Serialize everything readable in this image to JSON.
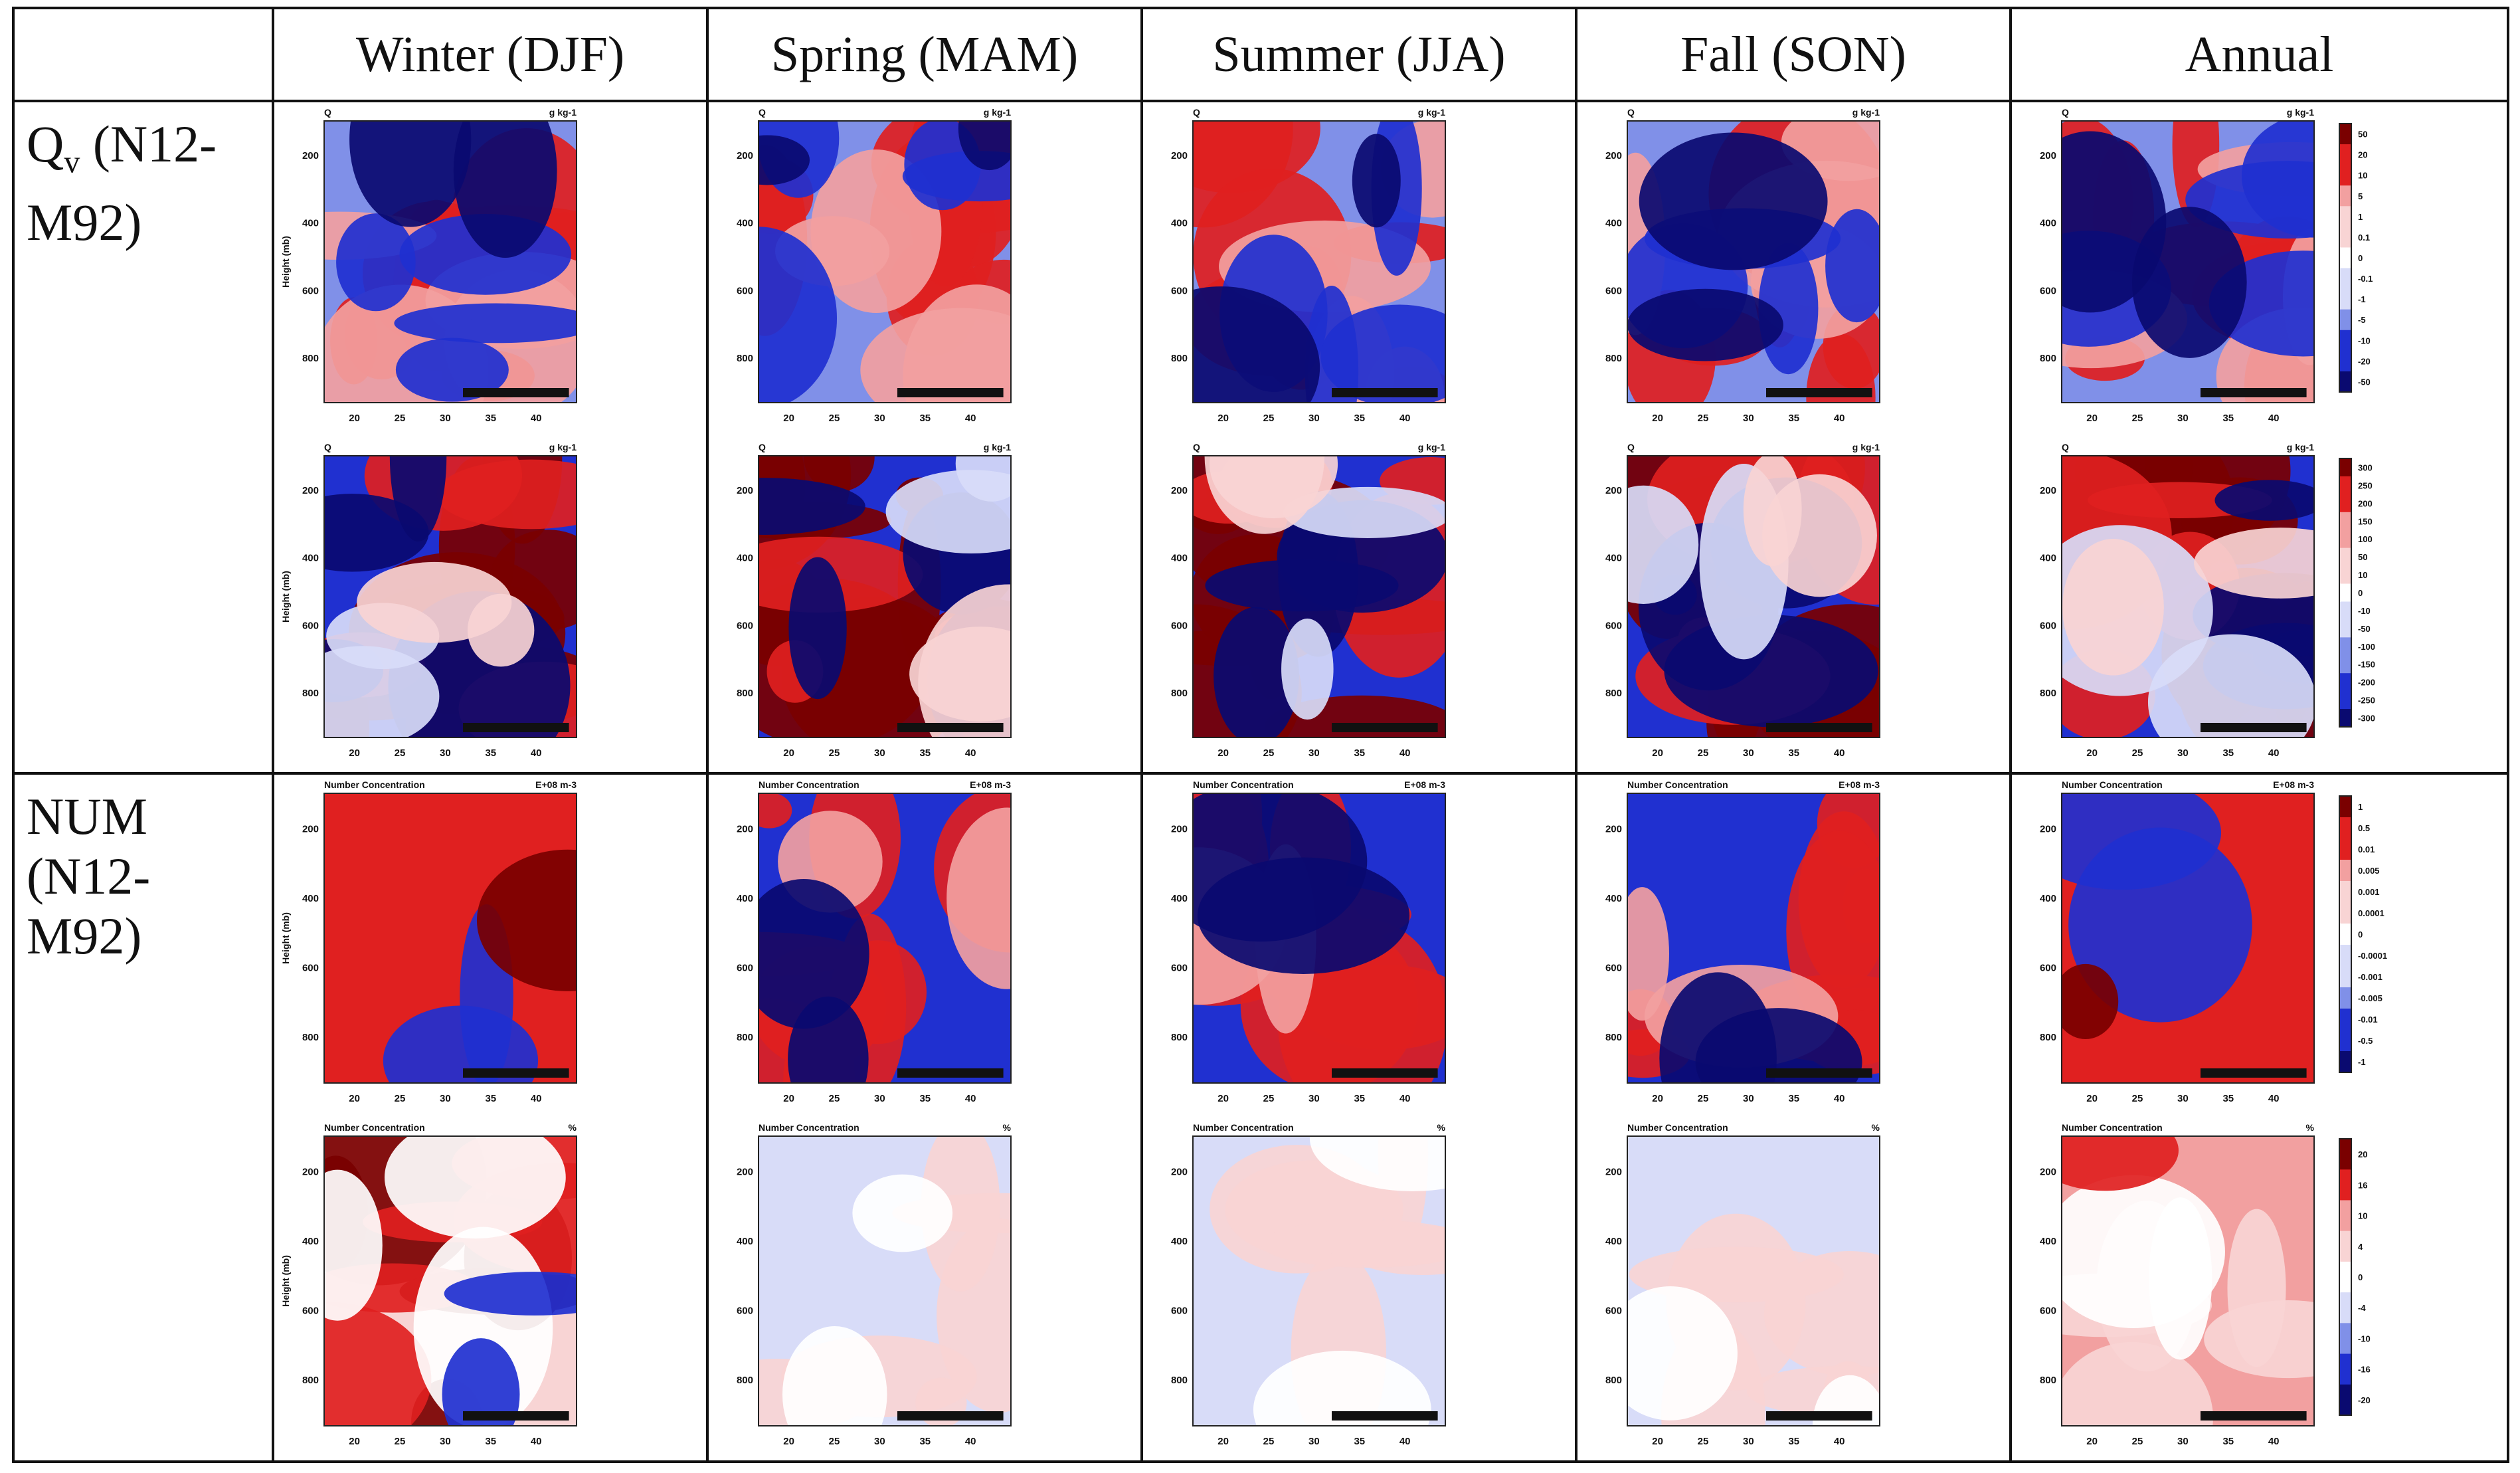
{
  "header": {
    "corner": "",
    "columns": [
      "Winter (DJF)",
      "Spring (MAM)",
      "Summer (JJA)",
      "Fall (SON)",
      "Annual"
    ]
  },
  "rows": [
    {
      "label_main": "Q",
      "label_sub": "v",
      "label_rest": " (N12-",
      "label_line2": "M92)"
    },
    {
      "label_main": "NUM",
      "label_line2": "(N12-",
      "label_line3": "M92)"
    }
  ],
  "panel_text": {
    "title_q": "Q",
    "units_q": "g kg-1",
    "title_num": "Number Concentration",
    "units_num_abs": "E+08 m-3",
    "units_num_pct": "%",
    "ylabel_mb": "Height (mb)"
  },
  "axes": {
    "x_ticks": [
      "20",
      "25",
      "30",
      "35",
      "40"
    ],
    "y_ticks_top": [
      "200",
      "400",
      "600",
      "800"
    ],
    "y_ticks_bottom": [
      "200",
      "400",
      "600",
      "800"
    ]
  },
  "colorbars": {
    "qv_abs": [
      "50",
      "20",
      "10",
      "5",
      "1",
      "0.1",
      "0",
      "-0.1",
      "-1",
      "-5",
      "-10",
      "-20",
      "-50"
    ],
    "qv_pct": [
      "300",
      "250",
      "200",
      "150",
      "100",
      "50",
      "10",
      "0",
      "-10",
      "-50",
      "-100",
      "-150",
      "-200",
      "-250",
      "-300"
    ],
    "num_abs": [
      "1",
      "0.5",
      "0.01",
      "0.005",
      "0.001",
      "0.0001",
      "0",
      "-0.0001",
      "-0.001",
      "-0.005",
      "-0.01",
      "-0.5",
      "-1"
    ],
    "num_pct": [
      "20",
      "16",
      "10",
      "4",
      "0",
      "-4",
      "-10",
      "-16",
      "-20"
    ]
  },
  "colors": {
    "deep_red": "#7a0000",
    "red": "#e02020",
    "light_red": "#f2a0a0",
    "pale_red": "#f8d4d4",
    "white": "#ffffff",
    "pale_blue": "#d8dcf8",
    "light_blue": "#8090e8",
    "blue": "#2030d0",
    "deep_blue": "#0a0a70"
  }
}
